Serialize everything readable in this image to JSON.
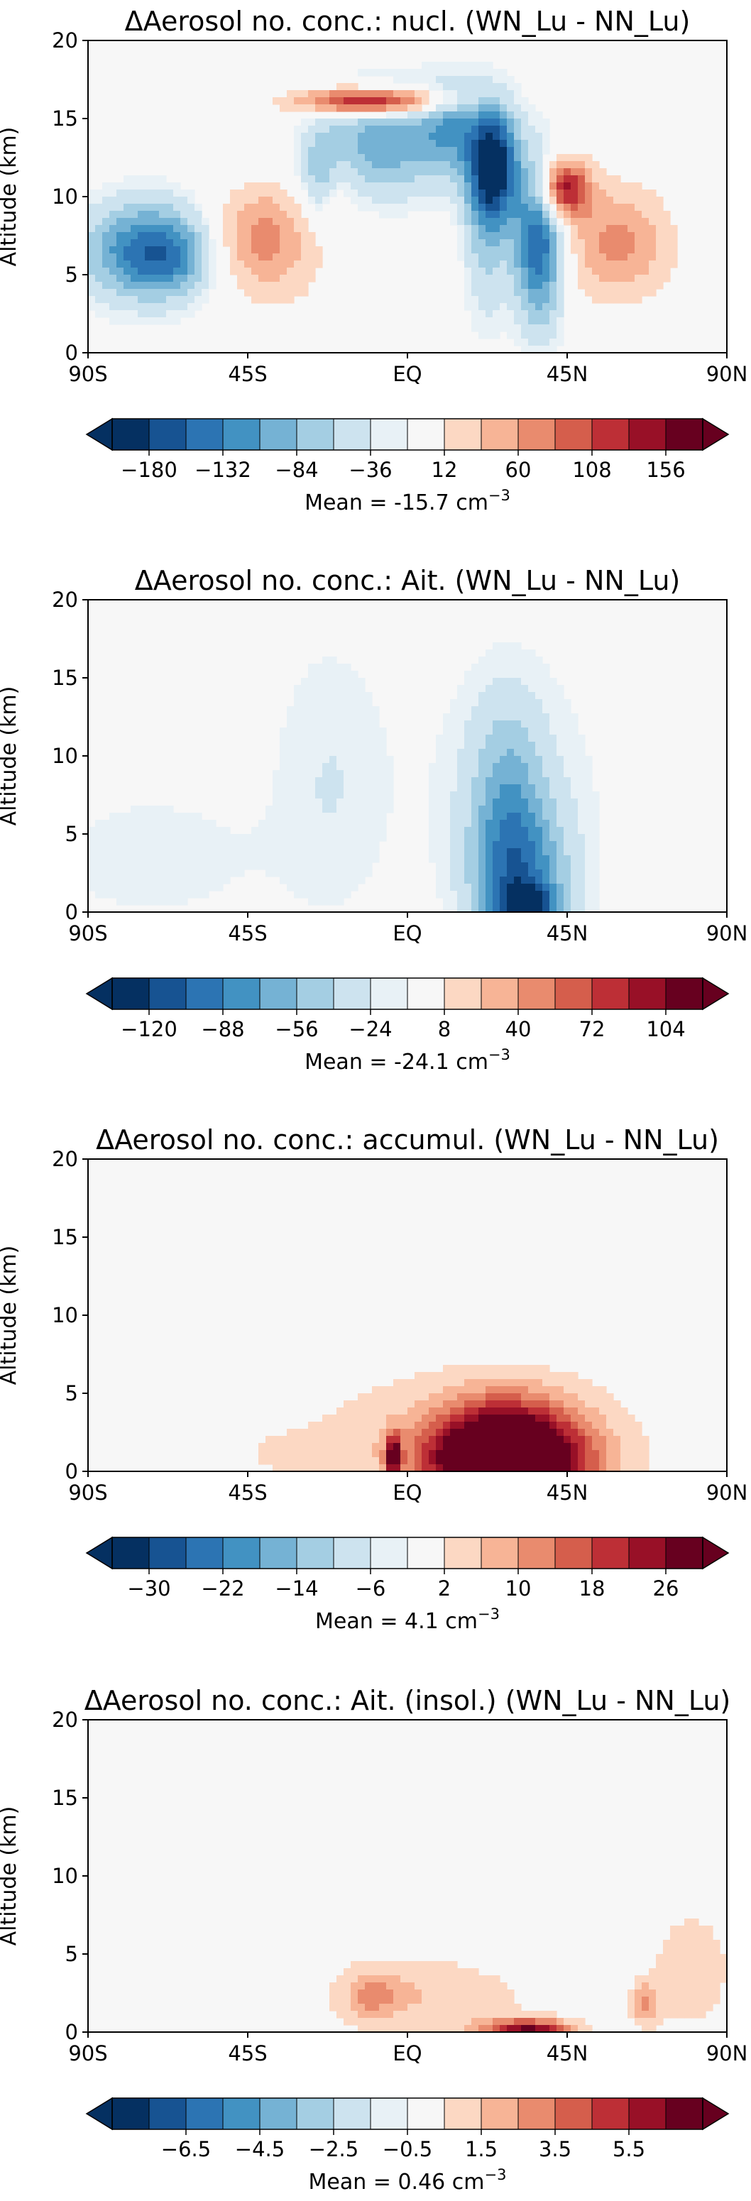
{
  "chart_data": [
    {
      "type": "contourf",
      "title": "ΔAerosol no. conc.: nucl. (WN_Lu - NN_Lu)",
      "ylabel": "Altitude (km)",
      "xlabel": "",
      "x_ticks": [
        "90S",
        "45S",
        "EQ",
        "45N",
        "90N"
      ],
      "x_range": [
        -90,
        90
      ],
      "y_ticks": [
        "0",
        "5",
        "10",
        "15",
        "20"
      ],
      "ylim": [
        0,
        20
      ],
      "colorbar_ticks": [
        "−180",
        "−132",
        "−84",
        "−36",
        "12",
        "60",
        "108",
        "156"
      ],
      "levels_range": [
        -192,
        192
      ],
      "mean_label": "Mean = -15.7 cm",
      "mean_exponent": "−3",
      "blobs": [
        {
          "lat": -74,
          "alt": 6.5,
          "sx": 12,
          "sy": 2.2,
          "amp": -125
        },
        {
          "lat": -66,
          "alt": 6.0,
          "sx": 7,
          "sy": 1.5,
          "amp": -40
        },
        {
          "lat": -42,
          "alt": 7.5,
          "sx": 9,
          "sy": 2.2,
          "amp": 65
        },
        {
          "lat": -35,
          "alt": 6.0,
          "sx": 12,
          "sy": 3.5,
          "amp": 25
        },
        {
          "lat": -10,
          "alt": 16.1,
          "sx": 14,
          "sy": 0.6,
          "amp": 175
        },
        {
          "lat": -25,
          "alt": 11.5,
          "sx": 4,
          "sy": 2,
          "amp": -55
        },
        {
          "lat": -6,
          "alt": 13.5,
          "sx": 12,
          "sy": 2.4,
          "amp": -90
        },
        {
          "lat": 12,
          "alt": 14.5,
          "sx": 6,
          "sy": 2.0,
          "amp": -70
        },
        {
          "lat": 24,
          "alt": 12.0,
          "sx": 5,
          "sy": 2.6,
          "amp": -200
        },
        {
          "lat": 22,
          "alt": 6.5,
          "sx": 4,
          "sy": 3.5,
          "amp": -45
        },
        {
          "lat": 37,
          "alt": 7.0,
          "sx": 5,
          "sy": 3.5,
          "amp": -150
        },
        {
          "lat": 44,
          "alt": 10.5,
          "sx": 5,
          "sy": 1.3,
          "amp": 160
        },
        {
          "lat": 59,
          "alt": 7.0,
          "sx": 11,
          "sy": 2.6,
          "amp": 80
        },
        {
          "lat": -20,
          "alt": 10.5,
          "sx": 3,
          "sy": 1.5,
          "amp": 20
        }
      ]
    },
    {
      "type": "contourf",
      "title": "ΔAerosol no. conc.: Ait. (WN_Lu - NN_Lu)",
      "ylabel": "Altitude (km)",
      "xlabel": "",
      "x_ticks": [
        "90S",
        "45S",
        "EQ",
        "45N",
        "90N"
      ],
      "x_range": [
        -90,
        90
      ],
      "y_ticks": [
        "0",
        "5",
        "10",
        "15",
        "20"
      ],
      "ylim": [
        0,
        20
      ],
      "colorbar_ticks": [
        "−120",
        "−88",
        "−56",
        "−24",
        "8",
        "40",
        "72",
        "104"
      ],
      "levels_range": [
        -128,
        128
      ],
      "mean_label": "Mean = -24.1 cm",
      "mean_exponent": "−3",
      "blobs": [
        {
          "lat": -72,
          "alt": 3.5,
          "sx": 22,
          "sy": 3.0,
          "amp": -14
        },
        {
          "lat": -22,
          "alt": 8.5,
          "sx": 12,
          "sy": 6.5,
          "amp": -16
        },
        {
          "lat": 30,
          "alt": 7.5,
          "sx": 18,
          "sy": 6.5,
          "amp": -16
        },
        {
          "lat": 28,
          "alt": 7.0,
          "sx": 7,
          "sy": 4.5,
          "amp": -40
        },
        {
          "lat": 32,
          "alt": 1.5,
          "sx": 9,
          "sy": 3.5,
          "amp": -70
        },
        {
          "lat": 34,
          "alt": 0.2,
          "sx": 5,
          "sy": 1.0,
          "amp": -80
        }
      ]
    },
    {
      "type": "contourf",
      "title": "ΔAerosol no. conc.: accumul. (WN_Lu - NN_Lu)",
      "ylabel": "Altitude (km)",
      "xlabel": "",
      "x_ticks": [
        "90S",
        "45S",
        "EQ",
        "45N",
        "90N"
      ],
      "x_range": [
        -90,
        90
      ],
      "y_ticks": [
        "0",
        "5",
        "10",
        "15",
        "20"
      ],
      "ylim": [
        0,
        20
      ],
      "colorbar_ticks": [
        "−30",
        "−22",
        "−14",
        "−6",
        "2",
        "10",
        "18",
        "26"
      ],
      "levels_range": [
        -32,
        32
      ],
      "mean_label": "Mean = 4.1 cm",
      "mean_exponent": "−3",
      "blobs": [
        {
          "lat": 15,
          "alt": 3.0,
          "sx": 40,
          "sy": 3.0,
          "amp": 6
        },
        {
          "lat": 28,
          "alt": 1.5,
          "sx": 14,
          "sy": 2.2,
          "amp": 35
        },
        {
          "lat": 28,
          "alt": 0.3,
          "sx": 18,
          "sy": 1.5,
          "amp": 20
        },
        {
          "lat": -4,
          "alt": 1.0,
          "sx": 1.5,
          "sy": 1.0,
          "amp": 25
        },
        {
          "lat": -30,
          "alt": 1.0,
          "sx": 12,
          "sy": 1.0,
          "amp": 4
        }
      ]
    },
    {
      "type": "contourf",
      "title": "ΔAerosol no. conc.: Ait. (insol.) (WN_Lu - NN_Lu)",
      "ylabel": "Altitude (km)",
      "xlabel": "",
      "x_ticks": [
        "90S",
        "45S",
        "EQ",
        "45N",
        "90N"
      ],
      "x_range": [
        -90,
        90
      ],
      "y_ticks": [
        "0",
        "5",
        "10",
        "15",
        "20"
      ],
      "ylim": [
        0,
        20
      ],
      "colorbar_ticks": [
        "−6.5",
        "−4.5",
        "−2.5",
        "−0.5",
        "1.5",
        "3.5",
        "5.5"
      ],
      "levels_range": [
        -7,
        7
      ],
      "mean_label": "Mean = 0.46 cm",
      "mean_exponent": "−3",
      "blobs": [
        {
          "lat": -5,
          "alt": 2.5,
          "sx": 16,
          "sy": 2.0,
          "amp": 1.3
        },
        {
          "lat": -10,
          "alt": 2.3,
          "sx": 5,
          "sy": 1.0,
          "amp": 1.8
        },
        {
          "lat": 20,
          "alt": 2.0,
          "sx": 18,
          "sy": 2.0,
          "amp": 0.9
        },
        {
          "lat": 34,
          "alt": 0.1,
          "sx": 9,
          "sy": 0.5,
          "amp": 6
        },
        {
          "lat": 80,
          "alt": 4.0,
          "sx": 9,
          "sy": 3.0,
          "amp": 1.5
        },
        {
          "lat": 67,
          "alt": 1.8,
          "sx": 3,
          "sy": 1.0,
          "amp": 2.5
        }
      ]
    }
  ],
  "colors": {
    "neg": [
      "#053061",
      "#2166ac",
      "#4393c3",
      "#92c5de",
      "#d1e5f0"
    ],
    "neutral": "#f7f7f7",
    "pos": [
      "#fddbc7",
      "#f4a582",
      "#d6604d",
      "#b2182b",
      "#67001f"
    ],
    "frame": "#000000"
  }
}
